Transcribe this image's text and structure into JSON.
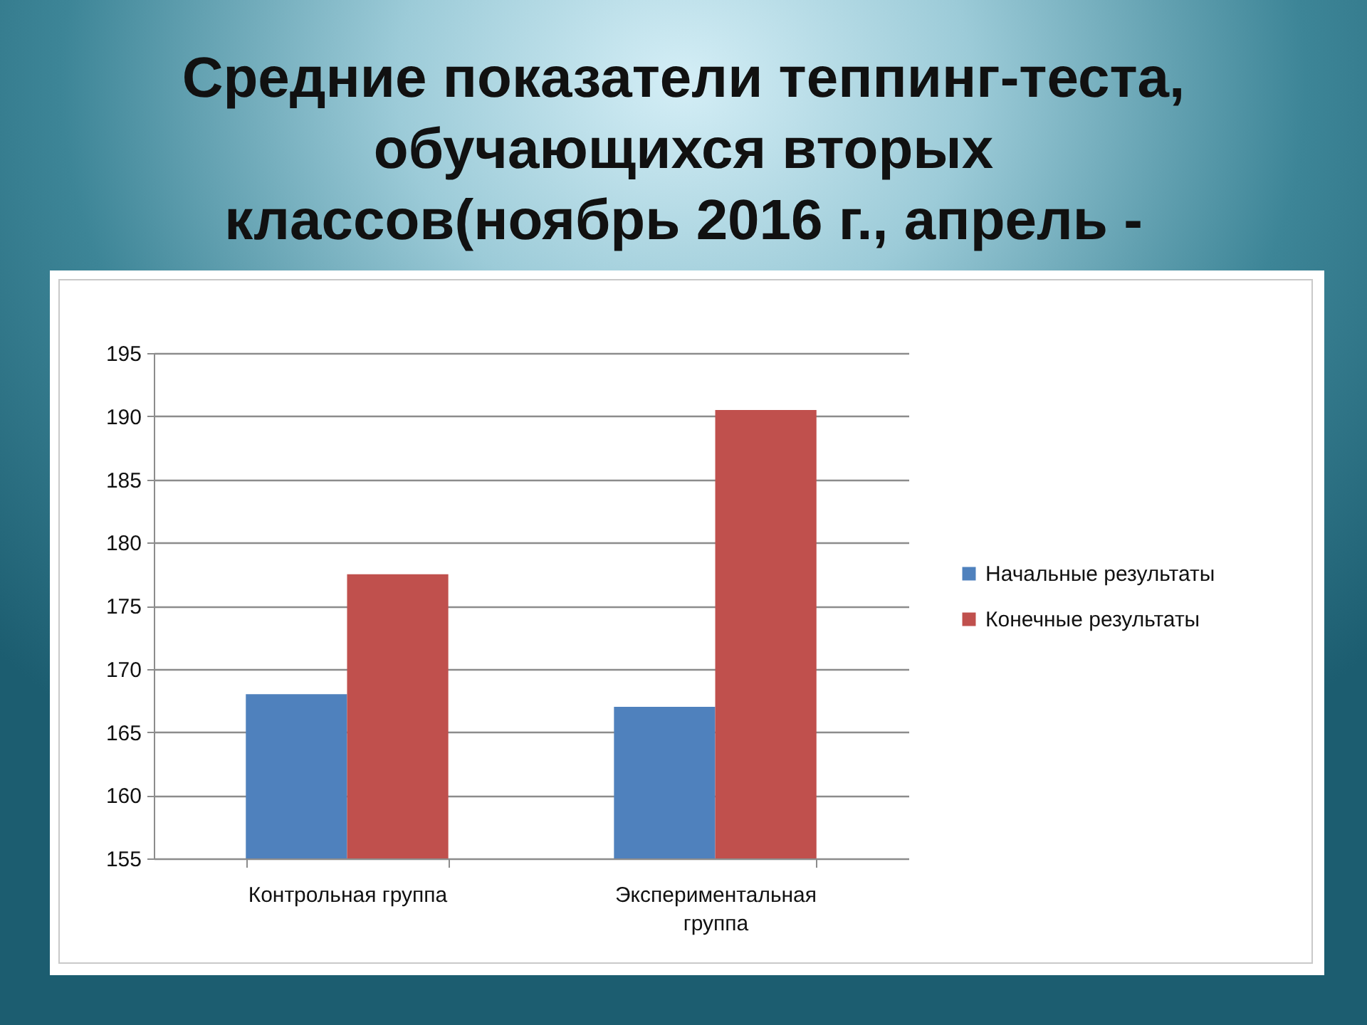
{
  "chart_data": {
    "type": "bar",
    "title": "Средние показатели теппинг-теста,\nобучающихся вторых\nклассов(ноябрь 2016 г., апрель -",
    "categories": [
      "Контрольная группа",
      "Экспериментальная группа"
    ],
    "series": [
      {
        "name": "Начальные результаты",
        "color": "#4f81bd",
        "values": [
          168,
          167
        ]
      },
      {
        "name": "Конечные результаты",
        "color": "#c0504d",
        "values": [
          177.5,
          190.5
        ]
      }
    ],
    "ylim": [
      155,
      195
    ],
    "yticks": [
      155,
      160,
      165,
      170,
      175,
      180,
      185,
      190,
      195
    ],
    "grid": "y",
    "legend": "right"
  }
}
